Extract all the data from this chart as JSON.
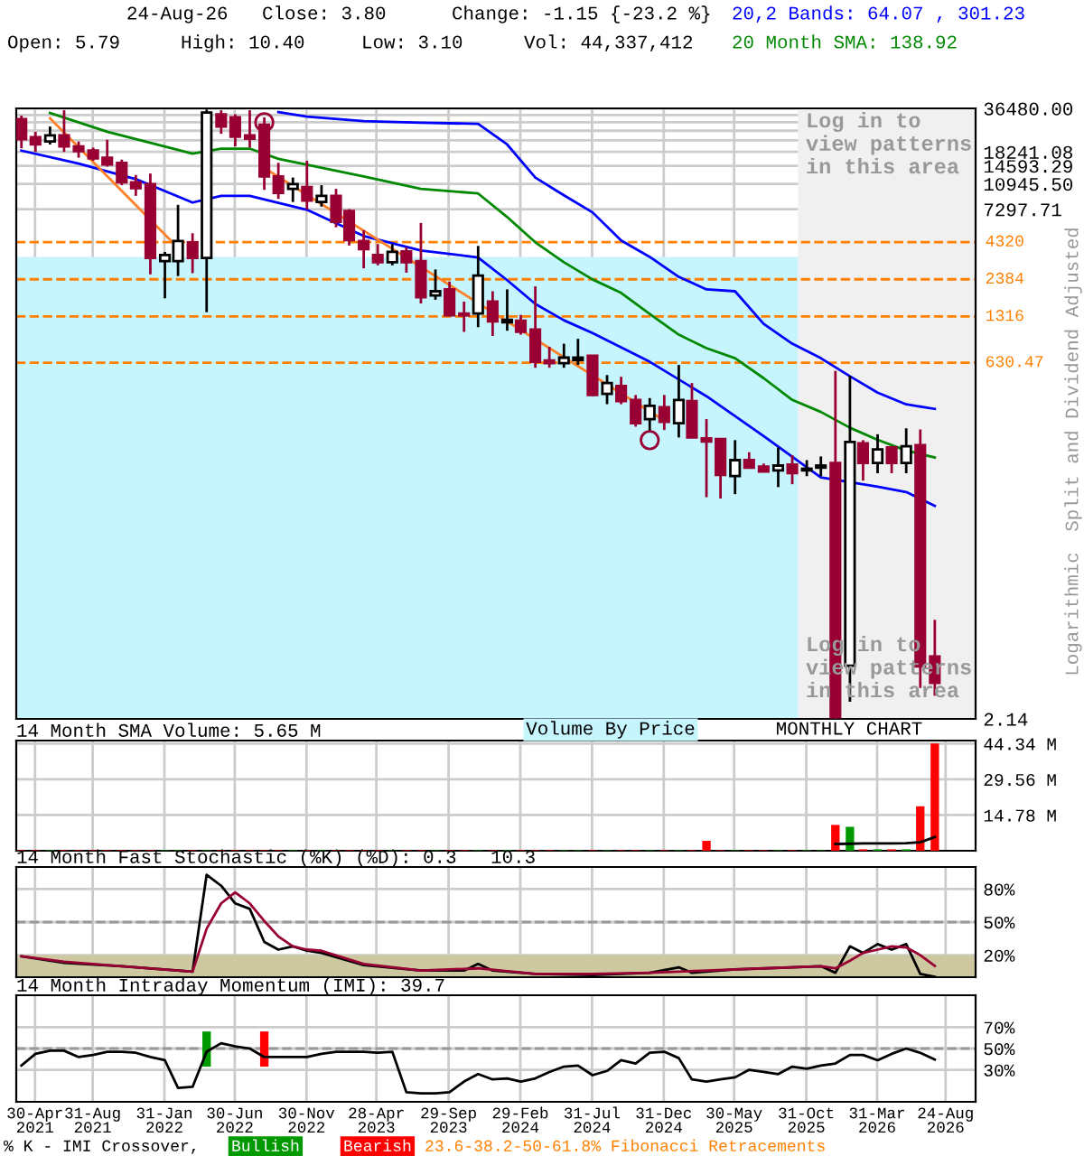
{
  "chart_data": [
    {
      "type": "candlestick",
      "log": true,
      "grid": true,
      "legend": "top",
      "tick_labels": "y",
      "colors": [
        "#990033",
        "#990033",
        "#ffffff",
        "#990033",
        "#990033",
        "#990033",
        "#990033",
        "#990033",
        "#990033",
        "#990033",
        "#ffffff",
        "#ffffff",
        "#990033",
        "#ffffff",
        "#990033",
        "#990033",
        "#990033",
        "#990033",
        "#990033",
        "#ffffff",
        "#990033",
        "#ffffff",
        "#990033",
        "#990033",
        "#990033",
        "#990033",
        "#ffffff",
        "#990033",
        "#990033",
        "#ffffff",
        "#990033",
        "#990033",
        "#ffffff",
        "#990033",
        "#ffffff",
        "#990033",
        "#990033",
        "#990033",
        "#ffffff",
        "#ffffff",
        "#990033",
        "#ffffff",
        "#990033",
        "#990033",
        "#ffffff",
        "#990033",
        "#ffffff",
        "#990033",
        "#990033",
        "#990033",
        "#ffffff",
        "#990033",
        "#990033",
        "#ffffff",
        "#990033",
        "#ffffff",
        "#ffffff",
        "#990033",
        "#ffffff",
        "#990033",
        "#ffffff",
        "#990033",
        "#ffffff",
        "#990033",
        "#990033"
      ],
      "x": [
        "2021-04",
        "2021-05",
        "2021-06",
        "2021-07",
        "2021-08",
        "2021-09",
        "2021-10",
        "2021-11",
        "2021-12",
        "2022-01",
        "2022-02",
        "2022-03",
        "2022-04",
        "2022-05",
        "2022-06",
        "2022-07",
        "2022-08",
        "2022-09",
        "2022-10",
        "2022-11",
        "2022-12",
        "2023-01",
        "2023-02",
        "2023-03",
        "2023-04",
        "2023-05",
        "2023-06",
        "2023-07",
        "2023-08",
        "2023-09",
        "2023-10",
        "2023-11",
        "2023-12",
        "2024-01",
        "2024-02",
        "2024-03",
        "2024-04",
        "2024-05",
        "2024-06",
        "2024-07",
        "2024-08",
        "2024-09",
        "2024-10",
        "2024-11",
        "2024-12",
        "2025-01",
        "2025-02",
        "2025-03",
        "2025-04",
        "2025-05",
        "2025-06",
        "2025-07",
        "2025-08",
        "2025-09",
        "2025-10",
        "2025-11",
        "2025-12",
        "2026-01",
        "2026-02",
        "2026-03",
        "2026-04",
        "2026-05",
        "2026-06",
        "2026-07",
        "2026-08"
      ],
      "ohlc": [
        [
          30700,
          32500,
          19300,
          22300
        ],
        [
          23000,
          25100,
          18200,
          20500
        ],
        [
          21500,
          27300,
          20500,
          23700
        ],
        [
          23700,
          35400,
          18200,
          19900
        ],
        [
          19900,
          21500,
          16600,
          18400
        ],
        [
          18600,
          19500,
          15800,
          16400
        ],
        [
          16600,
          22100,
          14400,
          14900
        ],
        [
          15300,
          16100,
          10700,
          11200
        ],
        [
          11200,
          12600,
          9030,
          10200
        ],
        [
          10900,
          12900,
          2580,
          3350
        ],
        [
          3190,
          3690,
          1760,
          3510
        ],
        [
          3190,
          7820,
          2510,
          4390
        ],
        [
          4300,
          4970,
          2630,
          3350
        ],
        [
          3350,
          35800,
          1410,
          34100
        ],
        [
          33200,
          35400,
          24300,
          27300
        ],
        [
          31600,
          33200,
          19900,
          23200
        ],
        [
          23700,
          35400,
          19500,
          22500
        ],
        [
          28100,
          31600,
          9940,
          12300
        ],
        [
          12300,
          15300,
          8600,
          9460
        ],
        [
          10100,
          12100,
          8190,
          10900
        ],
        [
          10400,
          15800,
          7230,
          8360
        ],
        [
          8190,
          10700,
          7600,
          9030
        ],
        [
          9030,
          10100,
          5470,
          5960
        ],
        [
          7090,
          7300,
          4090,
          4460
        ],
        [
          4390,
          5220,
          2840,
          3860
        ],
        [
          3510,
          4180,
          2980,
          3130
        ],
        [
          3130,
          4180,
          2980,
          3690
        ],
        [
          3720,
          3980,
          2650,
          3130
        ],
        [
          3190,
          5860,
          1620,
          1790
        ],
        [
          1840,
          2790,
          1720,
          1970
        ],
        [
          2030,
          2300,
          1320,
          1340
        ],
        [
          1380,
          1670,
          1030,
          1340
        ],
        [
          1380,
          4060,
          1110,
          2530
        ],
        [
          1670,
          1970,
          965,
          1220
        ],
        [
          1200,
          2030,
          1050,
          1250
        ],
        [
          1230,
          1350,
          985,
          1030
        ],
        [
          1070,
          2130,
          581,
          639
        ],
        [
          652,
          812,
          581,
          626
        ],
        [
          626,
          853,
          581,
          683
        ],
        [
          657,
          922,
          608,
          683
        ],
        [
          703,
          710,
          369,
          376
        ],
        [
          383,
          517,
          325,
          455
        ],
        [
          435,
          503,
          325,
          341
        ],
        [
          348,
          376,
          227,
          240
        ],
        [
          256,
          358,
          211,
          316
        ],
        [
          310,
          376,
          215,
          245
        ],
        [
          240,
          608,
          191,
          348
        ],
        [
          341,
          455,
          191,
          191
        ],
        [
          188,
          256,
          73.6,
          179
        ],
        [
          186,
          186,
          72.1,
          105
        ],
        [
          103,
          183,
          77.3,
          133
        ],
        [
          133,
          151,
          116,
          118
        ],
        [
          120,
          126,
          110,
          111
        ],
        [
          113,
          163,
          86.5,
          122
        ],
        [
          124,
          144,
          90.6,
          108
        ],
        [
          113,
          133,
          103,
          116
        ],
        [
          118,
          141,
          103,
          122
        ],
        [
          127,
          553,
          2.15,
          2.2
        ],
        [
          5.0,
          512,
          2.81,
          178
        ],
        [
          174,
          183,
          96,
          127
        ],
        [
          127,
          201,
          108,
          158
        ],
        [
          163,
          166,
          108,
          127
        ],
        [
          127,
          221,
          108,
          166
        ],
        [
          169,
          217,
          3.51,
          4.95
        ],
        [
          5.79,
          10.4,
          3.1,
          3.8
        ]
      ],
      "series": [
        {
          "name": "20,2 Bands: 64.07 , 301.23",
          "type": "line",
          "color": "#0000ff",
          "x": [
            "2022-10",
            "2022-12",
            "2023-04",
            "2023-08",
            "2023-12",
            "2024-02",
            "2024-04",
            "2024-06",
            "2024-08",
            "2024-10",
            "2024-12",
            "2025-02",
            "2025-04",
            "2025-06",
            "2025-08",
            "2025-10",
            "2025-12",
            "2026-02",
            "2026-04",
            "2026-06",
            "2026-08"
          ],
          "values": [
            34400,
            32000,
            29800,
            29000,
            28500,
            20500,
            12100,
            9110,
            6940,
            4430,
            3410,
            2480,
            2030,
            1970,
            1170,
            853,
            677,
            507,
            391,
            324,
            301.23
          ]
        },
        {
          "type": "line",
          "color": "#0000ff",
          "x": [
            "2021-04",
            "2021-08",
            "2021-12",
            "2022-04",
            "2022-06",
            "2022-08",
            "2022-12",
            "2023-04",
            "2023-08",
            "2023-12",
            "2024-02",
            "2024-04",
            "2024-06",
            "2024-08",
            "2024-12",
            "2025-04",
            "2025-08",
            "2025-12",
            "2026-04",
            "2026-06",
            "2026-08"
          ],
          "values": [
            18600,
            15100,
            11800,
            8120,
            9030,
            9030,
            7230,
            4760,
            3780,
            3380,
            2350,
            1610,
            1240,
            1010,
            639,
            369,
            195,
            101,
            87,
            80,
            64.07
          ]
        },
        {
          "name": "20 Month SMA: 138.92",
          "type": "line",
          "color": "#008800",
          "x": [
            "2021-06",
            "2021-10",
            "2022-04",
            "2022-06",
            "2022-08",
            "2022-10",
            "2023-04",
            "2023-08",
            "2023-12",
            "2024-02",
            "2024-04",
            "2024-06",
            "2024-08",
            "2024-10",
            "2024-12",
            "2025-02",
            "2025-04",
            "2025-06",
            "2025-08",
            "2025-10",
            "2025-12",
            "2026-02",
            "2026-04",
            "2026-06",
            "2026-08"
          ],
          "values": [
            33900,
            25100,
            17700,
            19200,
            19200,
            16300,
            12300,
            10100,
            9380,
            6440,
            4300,
            3130,
            2380,
            1920,
            1370,
            985,
            794,
            677,
            492,
            348,
            287,
            223,
            184,
            155,
            138.92
          ]
        },
        {
          "type": "line",
          "color": "#ff7f27",
          "x": [
            "2021-06",
            "2022-03"
          ],
          "values": [
            31100,
            3940
          ]
        },
        {
          "type": "line",
          "color": "#ff7f27",
          "x": [
            "2022-09",
            "2025-01"
          ],
          "values": [
            14100,
            250
          ]
        },
        {
          "type": "scatter",
          "marker": "circle",
          "color": "#990033",
          "x": [
            "2022-09",
            "2024-12"
          ],
          "values": [
            29200,
            183
          ]
        }
      ],
      "xlim": [
        "2021-03-21",
        "2026-10-27"
      ],
      "xticks": [
        "2021-04-30",
        "2021-08-31",
        "2022-01-31",
        "2022-06-30",
        "2022-11-30",
        "2023-04-28",
        "2023-09-29",
        "2024-02-29",
        "2024-07-31",
        "2024-12-31",
        "2025-05-30",
        "2025-10-31",
        "2026-03-31",
        "2026-08-24"
      ],
      "ylim": [
        2.14,
        36480
      ],
      "yticks": [
        2.14,
        7297.71,
        {
          "value": 10945.5,
          "label": "10945.50"
        },
        14593.29,
        18241.08,
        {
          "value": 21888.87,
          "label": null
        },
        {
          "value": 25536.66,
          "label": null
        },
        {
          "value": 29184.45,
          "label": null
        },
        {
          "value": 32832.24,
          "label": null
        },
        {
          "value": 36480,
          "label": "36480.00"
        }
      ],
      "ref_lines": [
        {
          "axis": "y",
          "value": 4320,
          "label": "4320",
          "color": "#ff8000",
          "line_style": "dashed"
        },
        {
          "axis": "y",
          "value": 2384,
          "label": "2384",
          "color": "#ff8000",
          "line_style": "dashed"
        },
        {
          "axis": "y",
          "value": 1316,
          "label": "1316",
          "color": "#ff8000",
          "line_style": "dashed"
        },
        {
          "axis": "y",
          "value": 630.47,
          "label": "630.47",
          "color": "#ff8000",
          "line_style": "dashed"
        }
      ],
      "bands": [
        {
          "axis": "y",
          "from": 2.14,
          "to": 3410,
          "color": "#c6f5fd"
        },
        {
          "axis": "x",
          "from": "2025-10-13",
          "to": "2026-10-27",
          "color": "#f0f0f0"
        }
      ],
      "annotations": [
        "24-Aug-26",
        "Close: 3.80",
        "Change: -1.15 {-23.2 %}",
        "Open: 5.79",
        "High: 10.40",
        "Low: 3.10",
        "Vol: 44,337,412",
        "Split and Dividend Adjusted",
        "Logarithmic",
        "Log in to\nview patterns\nin this area",
        "Log in to\nview patterns\nin this area",
        "23.6-38.2-50-61.8% Fibonacci Retracements"
      ]
    },
    {
      "type": "bar",
      "title": "14 Month SMA Volume: 5.65 M",
      "grid": true,
      "tick_labels": "y",
      "x": [
        "2021-04",
        "2021-05",
        "2021-06",
        "2021-07",
        "2021-08",
        "2021-09",
        "2021-10",
        "2021-11",
        "2021-12",
        "2022-01",
        "2022-02",
        "2022-03",
        "2022-04",
        "2022-05",
        "2022-06",
        "2022-07",
        "2022-08",
        "2022-09",
        "2022-10",
        "2022-11",
        "2022-12",
        "2023-01",
        "2023-02",
        "2023-03",
        "2023-04",
        "2023-05",
        "2023-06",
        "2023-07",
        "2023-08",
        "2023-09",
        "2023-10",
        "2023-11",
        "2023-12",
        "2024-01",
        "2024-02",
        "2024-03",
        "2024-04",
        "2024-05",
        "2024-06",
        "2024-07",
        "2024-08",
        "2024-09",
        "2024-10",
        "2024-11",
        "2024-12",
        "2025-01",
        "2025-02",
        "2025-03",
        "2025-04",
        "2025-05",
        "2025-06",
        "2025-07",
        "2025-08",
        "2025-09",
        "2025-10",
        "2025-11",
        "2025-12",
        "2026-01",
        "2026-02",
        "2026-03",
        "2026-04",
        "2026-05",
        "2026-06",
        "2026-07",
        "2026-08"
      ],
      "values": [
        0.2,
        0.2,
        0.2,
        0.2,
        0.2,
        0.2,
        0.2,
        0.2,
        0.2,
        0.2,
        0.2,
        0.2,
        0.2,
        0.2,
        0.2,
        0.2,
        0.2,
        0.2,
        0.2,
        0.2,
        0.2,
        0.2,
        0.2,
        0.2,
        0.2,
        0.2,
        0.2,
        0.2,
        0.2,
        0.2,
        0.2,
        0.2,
        0.2,
        0.2,
        0.2,
        0.2,
        0.2,
        0.2,
        0.2,
        0.2,
        0.2,
        0.2,
        0.2,
        0.2,
        0.2,
        0.2,
        0.2,
        0.2,
        4.1,
        0.2,
        0.2,
        0.2,
        0.2,
        0.2,
        0.2,
        0.2,
        0.2,
        10.7,
        9.9,
        0.6,
        0.6,
        0.6,
        0.6,
        18.4,
        44.34
      ],
      "colors": [
        "#ff0000",
        "#ff0000",
        "#009900",
        "#ff0000",
        "#ff0000",
        "#ff0000",
        "#ff0000",
        "#ff0000",
        "#ff0000",
        "#ff0000",
        "#009900",
        "#009900",
        "#ff0000",
        "#009900",
        "#ff0000",
        "#ff0000",
        "#ff0000",
        "#ff0000",
        "#ff0000",
        "#009900",
        "#ff0000",
        "#009900",
        "#ff0000",
        "#ff0000",
        "#ff0000",
        "#ff0000",
        "#009900",
        "#ff0000",
        "#ff0000",
        "#009900",
        "#ff0000",
        "#ff0000",
        "#009900",
        "#ff0000",
        "#009900",
        "#ff0000",
        "#ff0000",
        "#ff0000",
        "#009900",
        "#009900",
        "#ff0000",
        "#009900",
        "#ff0000",
        "#ff0000",
        "#009900",
        "#ff0000",
        "#009900",
        "#ff0000",
        "#ff0000",
        "#ff0000",
        "#009900",
        "#ff0000",
        "#ff0000",
        "#009900",
        "#ff0000",
        "#009900",
        "#009900",
        "#ff0000",
        "#009900",
        "#ff0000",
        "#009900",
        "#ff0000",
        "#009900",
        "#ff0000",
        "#ff0000"
      ],
      "series": [
        {
          "type": "line",
          "color": "#000000",
          "x": [
            "2026-01",
            "2026-02",
            "2026-03",
            "2026-04",
            "2026-05",
            "2026-06",
            "2026-07",
            "2026-08"
          ],
          "values": [
            2.8,
            2.9,
            3.0,
            3.0,
            3.0,
            3.1,
            3.5,
            5.65
          ]
        }
      ],
      "xlim": [
        "2021-03-21",
        "2026-10-27"
      ],
      "xticks": [
        "2021-04-30",
        "2021-08-31",
        "2022-01-31",
        "2022-06-30",
        "2022-11-30",
        "2023-04-28",
        "2023-09-29",
        "2024-02-29",
        "2024-07-31",
        "2024-12-31",
        "2025-05-30",
        "2025-10-31",
        "2026-03-31",
        "2026-08-24"
      ],
      "ylim": [
        0,
        45.6
      ],
      "yticks": [
        {
          "value": 14.78,
          "label": "14.78 M"
        },
        {
          "value": 29.56,
          "label": "29.56 M"
        },
        {
          "value": 44.34,
          "label": "44.34 M"
        }
      ],
      "annotations": [
        "Volume By Price",
        "MONTHLY CHART"
      ]
    },
    {
      "type": "line",
      "title": "14 Month Fast Stochastic (%K) (%D): 0.3   10.3",
      "grid": true,
      "tick_labels": "y",
      "series": [
        {
          "type": "line",
          "color": "#000000",
          "x": [
            "2021-04",
            "2021-07",
            "2021-11",
            "2022-04",
            "2022-05",
            "2022-06",
            "2022-07",
            "2022-08",
            "2022-09",
            "2022-10",
            "2022-11",
            "2022-12",
            "2023-01",
            "2023-04",
            "2023-08",
            "2023-11",
            "2023-12",
            "2024-01",
            "2024-04",
            "2024-08",
            "2024-12",
            "2025-02",
            "2025-03",
            "2025-06",
            "2025-10",
            "2025-12",
            "2026-01",
            "2026-02",
            "2026-03",
            "2026-04",
            "2026-05",
            "2026-06",
            "2026-07",
            "2026-08"
          ],
          "values": [
            19,
            13,
            10,
            5,
            93,
            83,
            67,
            62,
            32,
            25,
            28,
            24,
            22,
            11,
            6,
            6,
            12,
            6,
            3,
            2,
            4,
            9,
            4,
            7,
            9,
            10,
            4,
            28,
            22,
            30,
            25,
            30,
            3,
            0.3
          ]
        },
        {
          "type": "line",
          "color": "#990033",
          "x": [
            "2021-04",
            "2021-07",
            "2021-11",
            "2022-04",
            "2022-05",
            "2022-06",
            "2022-07",
            "2022-08",
            "2022-09",
            "2022-10",
            "2022-11",
            "2022-12",
            "2023-01",
            "2023-04",
            "2023-08",
            "2023-12",
            "2024-04",
            "2024-08",
            "2024-12",
            "2025-04",
            "2025-08",
            "2025-12",
            "2026-01",
            "2026-02",
            "2026-03",
            "2026-04",
            "2026-05",
            "2026-06",
            "2026-07",
            "2026-08"
          ],
          "values": [
            19,
            14,
            10,
            5,
            44,
            67,
            77,
            67,
            51,
            37,
            28,
            25,
            24,
            12,
            6,
            8,
            3,
            3,
            4,
            6,
            8,
            10,
            8,
            15,
            22,
            25,
            28,
            27,
            20,
            10.3
          ]
        }
      ],
      "xlim": [
        "2021-03-21",
        "2026-10-27"
      ],
      "xticks": [
        "2021-04-30",
        "2021-08-31",
        "2022-01-31",
        "2022-06-30",
        "2022-11-30",
        "2023-04-28",
        "2023-09-29",
        "2024-02-29",
        "2024-07-31",
        "2024-12-31",
        "2025-05-30",
        "2025-10-31",
        "2026-03-31",
        "2026-08-24"
      ],
      "ylim": [
        0,
        100
      ],
      "yticks": [
        {
          "value": 20,
          "label": "20%"
        },
        {
          "value": 50,
          "label": "50%"
        },
        {
          "value": 80,
          "label": "80%"
        }
      ],
      "ref_lines": [
        {
          "axis": "y",
          "value": 50,
          "color": "#999999",
          "line_style": "dashed"
        }
      ],
      "bands": [
        {
          "axis": "y",
          "from": 0,
          "to": 20,
          "color": "#cdc89f"
        }
      ]
    },
    {
      "type": "line",
      "title": "14 Month Intraday Momentum (IMI): 39.7",
      "grid": true,
      "legend": "bottom",
      "legend_title": "% K - IMI Crossover,",
      "x": [
        "2021-04",
        "2021-05",
        "2021-06",
        "2021-07",
        "2021-08",
        "2021-09",
        "2021-10",
        "2021-11",
        "2021-12",
        "2022-01",
        "2022-02",
        "2022-03",
        "2022-04",
        "2022-05",
        "2022-06",
        "2022-07",
        "2022-08",
        "2022-09",
        "2022-10",
        "2022-11",
        "2022-12",
        "2023-01",
        "2023-02",
        "2023-03",
        "2023-04",
        "2023-05",
        "2023-06",
        "2023-07",
        "2023-08",
        "2023-09",
        "2023-10",
        "2023-11",
        "2023-12",
        "2024-01",
        "2024-02",
        "2024-03",
        "2024-04",
        "2024-05",
        "2024-06",
        "2024-07",
        "2024-08",
        "2024-09",
        "2024-10",
        "2024-11",
        "2024-12",
        "2025-01",
        "2025-02",
        "2025-03",
        "2025-04",
        "2025-05",
        "2025-06",
        "2025-07",
        "2025-08",
        "2025-09",
        "2025-10",
        "2025-11",
        "2025-12",
        "2026-01",
        "2026-02",
        "2026-03",
        "2026-04",
        "2026-05",
        "2026-06",
        "2026-07",
        "2026-08"
      ],
      "series": [
        {
          "type": "line",
          "color": "#000000",
          "values": [
            34,
            45,
            48,
            48,
            42,
            44,
            47,
            47,
            46,
            42,
            39,
            13,
            14,
            47,
            55,
            52,
            50,
            42,
            42,
            42,
            42,
            45,
            47,
            47,
            47,
            46,
            47,
            9,
            8,
            8,
            9,
            19,
            26,
            21,
            22,
            19,
            22,
            28,
            33,
            34,
            25,
            29,
            39,
            36,
            46,
            47,
            41,
            21,
            19,
            21,
            23,
            30,
            28,
            26,
            33,
            31,
            34,
            36,
            44,
            44,
            39,
            45,
            50,
            46,
            39.7
          ]
        },
        {
          "name": "Bullish",
          "type": "bar",
          "color": "#009900",
          "x": [
            "2022-05"
          ],
          "base": [
            33
          ],
          "values": [
            33
          ]
        },
        {
          "name": "Bearish",
          "type": "bar",
          "color": "#ff0000",
          "x": [
            "2022-09"
          ],
          "base": [
            33
          ],
          "values": [
            33
          ]
        }
      ],
      "xlim": [
        "2021-03-21",
        "2026-10-27"
      ],
      "xticks": [
        {
          "value": "2021-04-30",
          "label": "30-Apr\n2021"
        },
        {
          "value": "2021-08-31",
          "label": "31-Aug\n2021"
        },
        {
          "value": "2022-01-31",
          "label": "31-Jan\n2022"
        },
        {
          "value": "2022-06-30",
          "label": "30-Jun\n2022"
        },
        {
          "value": "2022-11-30",
          "label": "30-Nov\n2022"
        },
        {
          "value": "2023-04-28",
          "label": "28-Apr\n2023"
        },
        {
          "value": "2023-09-29",
          "label": "29-Sep\n2023"
        },
        {
          "value": "2024-02-29",
          "label": "29-Feb\n2024"
        },
        {
          "value": "2024-07-31",
          "label": "31-Jul\n2024"
        },
        {
          "value": "2024-12-31",
          "label": "31-Dec\n2024"
        },
        {
          "value": "2025-05-30",
          "label": "30-May\n2025"
        },
        {
          "value": "2025-10-31",
          "label": "31-Oct\n2025"
        },
        {
          "value": "2026-03-31",
          "label": "31-Mar\n2026"
        },
        {
          "value": "2026-08-24",
          "label": "24-Aug\n2026"
        }
      ],
      "ylim": [
        0,
        100
      ],
      "yticks": [
        {
          "value": 30,
          "label": "30%"
        },
        {
          "value": 50,
          "label": "50%"
        },
        {
          "value": 70,
          "label": "70%"
        }
      ],
      "ref_lines": [
        {
          "axis": "y",
          "value": 50,
          "color": "#999999",
          "line_style": "dashed"
        }
      ]
    }
  ]
}
